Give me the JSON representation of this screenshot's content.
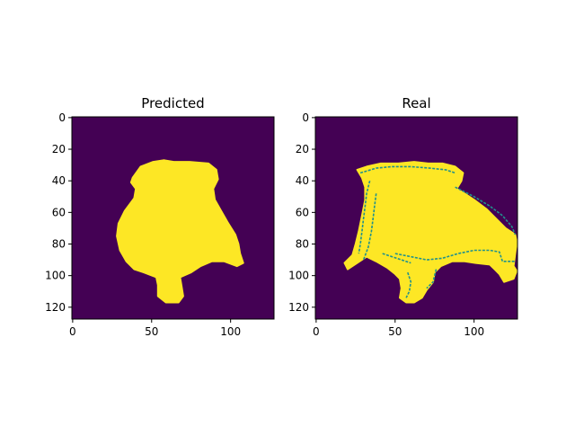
{
  "colors": {
    "background": "#440154",
    "mask": "#fde725",
    "edge": "#21918c"
  },
  "chart_data": [
    {
      "type": "heatmap",
      "title": "Predicted",
      "xlim": [
        0,
        127
      ],
      "ylim": [
        127,
        0
      ],
      "xticks": [
        0,
        50,
        100
      ],
      "yticks": [
        0,
        20,
        40,
        60,
        80,
        100,
        120
      ],
      "tick_labels_x": [
        "0",
        "50",
        "100"
      ],
      "tick_labels_y": [
        "0",
        "20",
        "40",
        "60",
        "80",
        "100",
        "120"
      ],
      "values": {
        "background": 0,
        "mask": 1
      },
      "mask_outline": [
        [
          38,
          38
        ],
        [
          43,
          31
        ],
        [
          51,
          28
        ],
        [
          58,
          27
        ],
        [
          64,
          28
        ],
        [
          74,
          28
        ],
        [
          86,
          29
        ],
        [
          91,
          33
        ],
        [
          92,
          39
        ],
        [
          89,
          45
        ],
        [
          90,
          52
        ],
        [
          94,
          59
        ],
        [
          98,
          66
        ],
        [
          103,
          74
        ],
        [
          105,
          80
        ],
        [
          106,
          86
        ],
        [
          108,
          92
        ],
        [
          104,
          94
        ],
        [
          96,
          91
        ],
        [
          88,
          91
        ],
        [
          81,
          94
        ],
        [
          75,
          98
        ],
        [
          68,
          101
        ],
        [
          69,
          107
        ],
        [
          70,
          113
        ],
        [
          67,
          117
        ],
        [
          59,
          117
        ],
        [
          54,
          113
        ],
        [
          54,
          106
        ],
        [
          53,
          101
        ],
        [
          45,
          98
        ],
        [
          39,
          96
        ],
        [
          34,
          91
        ],
        [
          30,
          84
        ],
        [
          28,
          75
        ],
        [
          29,
          67
        ],
        [
          33,
          59
        ],
        [
          39,
          51
        ],
        [
          40,
          45
        ],
        [
          37,
          41
        ]
      ]
    },
    {
      "type": "heatmap",
      "title": "Real",
      "xlim": [
        0,
        127
      ],
      "ylim": [
        127,
        0
      ],
      "xticks": [
        0,
        50,
        100
      ],
      "yticks": [
        0,
        20,
        40,
        60,
        80,
        100,
        120
      ],
      "tick_labels_x": [
        "0",
        "50",
        "100"
      ],
      "tick_labels_y": [
        "0",
        "20",
        "40",
        "60",
        "80",
        "100",
        "120"
      ],
      "values": {
        "background": 0,
        "mask": 1,
        "edge": 0.5
      },
      "mask_outline": [
        [
          26,
          33
        ],
        [
          32,
          31
        ],
        [
          41,
          29
        ],
        [
          52,
          29
        ],
        [
          62,
          28
        ],
        [
          71,
          29
        ],
        [
          80,
          29
        ],
        [
          88,
          31
        ],
        [
          93,
          35
        ],
        [
          92,
          40
        ],
        [
          89,
          45
        ],
        [
          94,
          48
        ],
        [
          100,
          52
        ],
        [
          108,
          58
        ],
        [
          114,
          64
        ],
        [
          120,
          70
        ],
        [
          126,
          74
        ],
        [
          127,
          79
        ],
        [
          125,
          94
        ],
        [
          127,
          97
        ],
        [
          125,
          102
        ],
        [
          119,
          104
        ],
        [
          116,
          99
        ],
        [
          113,
          96
        ],
        [
          110,
          93
        ],
        [
          101,
          92
        ],
        [
          94,
          91
        ],
        [
          86,
          91
        ],
        [
          79,
          94
        ],
        [
          75,
          98
        ],
        [
          74,
          104
        ],
        [
          70,
          109
        ],
        [
          67,
          114
        ],
        [
          62,
          117
        ],
        [
          57,
          117
        ],
        [
          53,
          114
        ],
        [
          54,
          108
        ],
        [
          53,
          102
        ],
        [
          50,
          99
        ],
        [
          45,
          95
        ],
        [
          38,
          91
        ],
        [
          32,
          88
        ],
        [
          26,
          92
        ],
        [
          20,
          96
        ],
        [
          18,
          92
        ],
        [
          23,
          87
        ],
        [
          25,
          80
        ],
        [
          27,
          72
        ],
        [
          29,
          62
        ],
        [
          31,
          52
        ],
        [
          31,
          44
        ],
        [
          29,
          38
        ]
      ],
      "edge_lines": [
        [
          [
            28,
            35
          ],
          [
            38,
            32
          ],
          [
            48,
            31
          ],
          [
            60,
            31
          ],
          [
            72,
            32
          ],
          [
            82,
            33
          ],
          [
            88,
            35
          ]
        ],
        [
          [
            34,
            40
          ],
          [
            32,
            48
          ],
          [
            31,
            56
          ],
          [
            30,
            64
          ],
          [
            29,
            72
          ],
          [
            28,
            80
          ],
          [
            27,
            86
          ]
        ],
        [
          [
            38,
            48
          ],
          [
            37,
            56
          ],
          [
            36,
            64
          ],
          [
            35,
            72
          ],
          [
            33,
            82
          ],
          [
            30,
            90
          ]
        ],
        [
          [
            88,
            44
          ],
          [
            100,
            50
          ],
          [
            110,
            56
          ],
          [
            118,
            62
          ],
          [
            124,
            69
          ],
          [
            126,
            74
          ]
        ],
        [
          [
            50,
            86
          ],
          [
            60,
            88
          ],
          [
            70,
            90
          ],
          [
            80,
            89
          ],
          [
            90,
            86
          ],
          [
            100,
            84
          ],
          [
            110,
            84
          ],
          [
            116,
            85
          ],
          [
            118,
            91
          ],
          [
            126,
            91
          ]
        ],
        [
          [
            58,
            98
          ],
          [
            60,
            104
          ],
          [
            59,
            110
          ],
          [
            57,
            114
          ]
        ],
        [
          [
            76,
            96
          ],
          [
            74,
            104
          ],
          [
            70,
            108
          ]
        ],
        [
          [
            42,
            86
          ],
          [
            48,
            88
          ],
          [
            54,
            90
          ],
          [
            60,
            92
          ]
        ]
      ]
    }
  ]
}
